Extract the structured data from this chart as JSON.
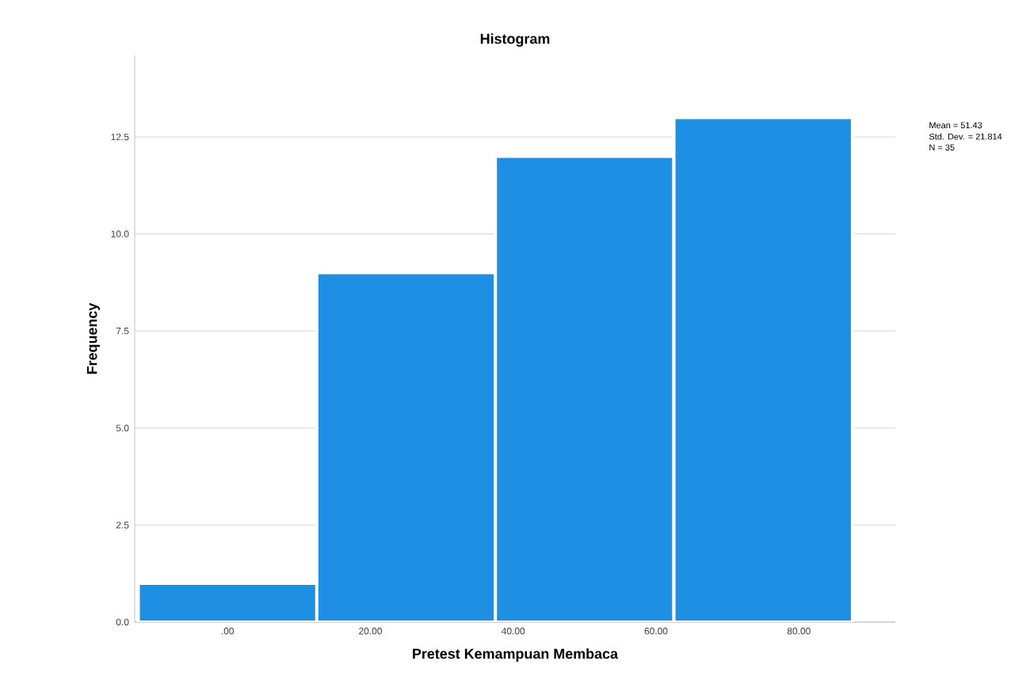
{
  "chart_data": {
    "type": "histogram",
    "title": "Histogram",
    "xlabel": "Pretest Kemampuan Membaca",
    "ylabel": "Frequency",
    "bins": [
      -12.5,
      12.5,
      37.5,
      62.5,
      87.5
    ],
    "values": [
      1,
      9,
      12,
      13
    ],
    "color": "#1f8fe3",
    "xlim": [
      -13,
      93.5
    ],
    "xticks": [
      {
        "value": 0,
        "label": ".00"
      },
      {
        "value": 20,
        "label": "20.00"
      },
      {
        "value": 40,
        "label": "40.00"
      },
      {
        "value": 60,
        "label": "60.00"
      },
      {
        "value": 80,
        "label": "80.00"
      }
    ],
    "ylim": [
      0,
      14.6
    ],
    "yticks": [
      {
        "value": 0,
        "label": "0.0"
      },
      {
        "value": 2.5,
        "label": "2.5"
      },
      {
        "value": 5,
        "label": "5.0"
      },
      {
        "value": 7.5,
        "label": "7.5"
      },
      {
        "value": 10,
        "label": "10.0"
      },
      {
        "value": 12.5,
        "label": "12.5"
      }
    ],
    "grid": "y",
    "annotations": [
      "Mean = 51.43",
      "Std. Dev. = 21.814",
      "N = 35"
    ]
  }
}
